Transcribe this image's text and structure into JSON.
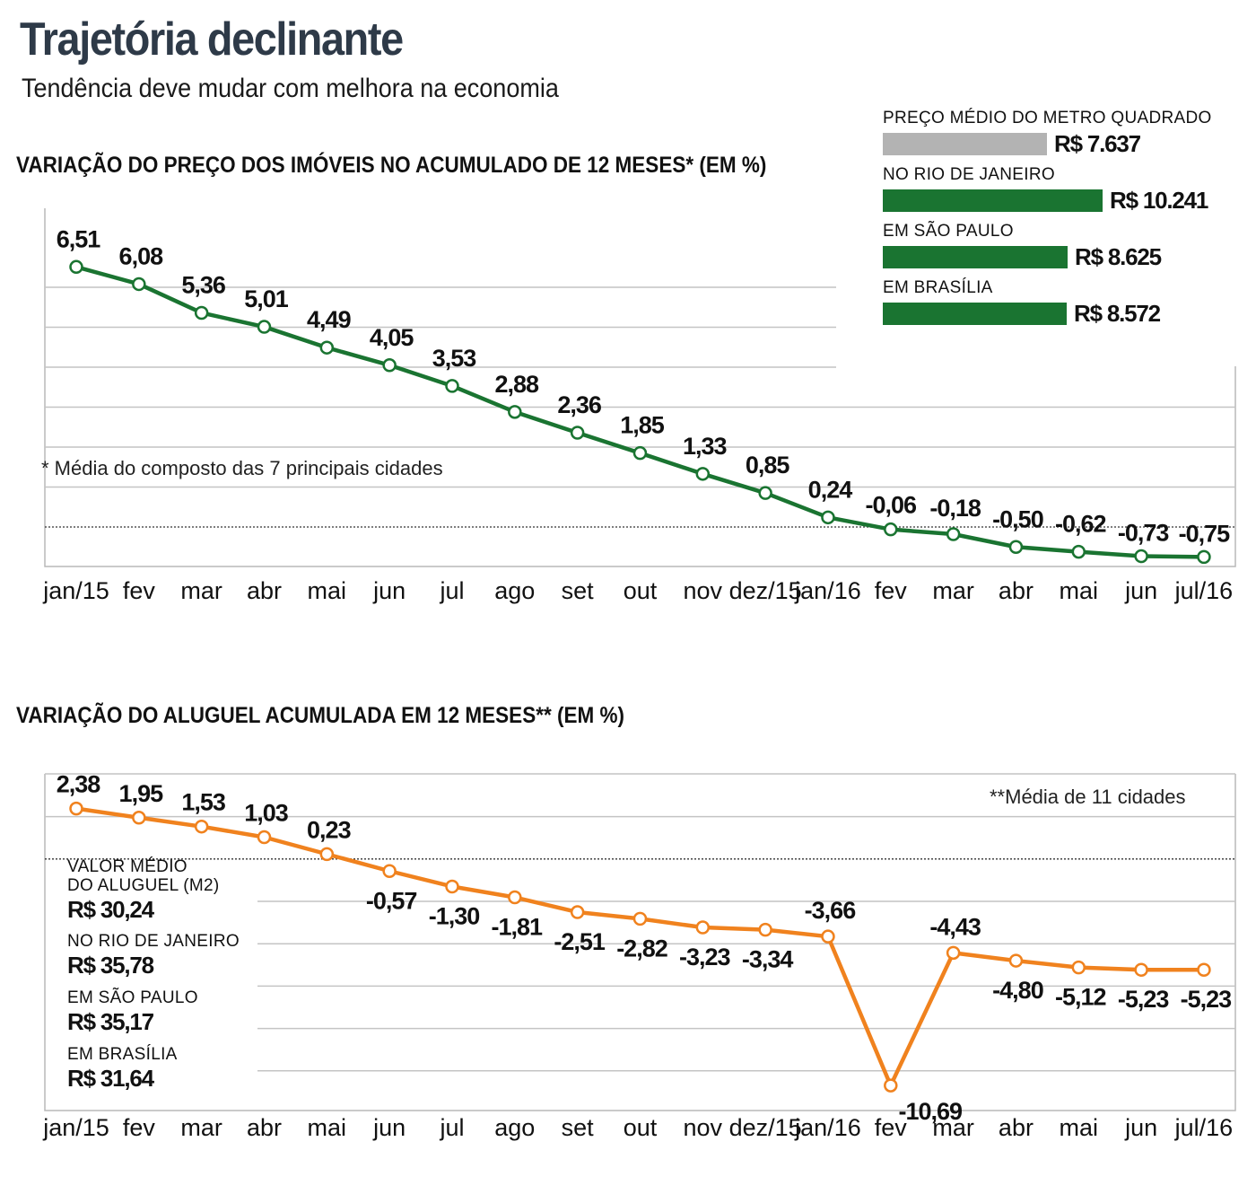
{
  "header": {
    "title": "Trajetória declinante",
    "subtitle": "Tendência deve mudar com melhora na economia"
  },
  "colors": {
    "price_line": "#1a7431",
    "rent_line": "#f0821e",
    "legend_gray": "#b3b3b3",
    "legend_green": "#1a7431",
    "grid": "#cccccc"
  },
  "price_legend": {
    "items": [
      {
        "caption": "PREÇO MÉDIO DO METRO QUADRADO",
        "value": "R$ 7.637",
        "amount": 7637,
        "color": "gray"
      },
      {
        "caption": "NO RIO DE JANEIRO",
        "value": "R$ 10.241",
        "amount": 10241,
        "color": "green"
      },
      {
        "caption": "EM SÃO PAULO",
        "value": "R$ 8.625",
        "amount": 8625,
        "color": "green"
      },
      {
        "caption": "EM BRASÍLIA",
        "value": "R$ 8.572",
        "amount": 8572,
        "color": "green"
      }
    ]
  },
  "rent_legend": {
    "items": [
      {
        "caption": "VALOR MÉDIO\nDO ALUGUEL (M2)",
        "value": "R$ 30,24"
      },
      {
        "caption": "NO RIO DE JANEIRO",
        "value": "R$ 35,78"
      },
      {
        "caption": "EM SÃO PAULO",
        "value": "R$ 35,17"
      },
      {
        "caption": "EM BRASÍLIA",
        "value": "R$ 31,64"
      }
    ]
  },
  "chart_data": [
    {
      "type": "line",
      "title": "VARIAÇÃO DO PREÇO DOS IMÓVEIS NO ACUMULADO DE 12 MESES* (EM %)",
      "note": "* Média do composto das 7 principais cidades",
      "categories": [
        "jan/15",
        "fev",
        "mar",
        "abr",
        "mai",
        "jun",
        "jul",
        "ago",
        "set",
        "out",
        "nov",
        "dez/15",
        "jan/16",
        "fev",
        "mar",
        "abr",
        "mai",
        "jun",
        "jul/16"
      ],
      "series": [
        {
          "values": [
            6.51,
            6.08,
            5.36,
            5.01,
            4.49,
            4.05,
            3.53,
            2.88,
            2.36,
            1.85,
            1.33,
            0.85,
            0.24,
            -0.06,
            -0.18,
            -0.5,
            -0.62,
            -0.73,
            -0.75
          ],
          "labels": [
            "6,51",
            "6,08",
            "5,36",
            "5,01",
            "4,49",
            "4,05",
            "3,53",
            "2,88",
            "2,36",
            "1,85",
            "1,33",
            "0,85",
            "0,24",
            "-0,06",
            "-0,18",
            "-0,50",
            "-0,62",
            "-0,73",
            "-0,75"
          ]
        }
      ],
      "ylim": [
        -1,
        7
      ],
      "zero_line": "dotted",
      "grid": true
    },
    {
      "type": "line",
      "title": "VARIAÇÃO DO ALUGUEL ACUMULADA EM 12 MESES**  (EM %)",
      "note": "**Média de 11 cidades",
      "categories": [
        "jan/15",
        "fev",
        "mar",
        "abr",
        "mai",
        "jun",
        "jul",
        "ago",
        "set",
        "out",
        "nov",
        "dez/15",
        "jan/16",
        "fev",
        "mar",
        "abr",
        "mai",
        "jun",
        "jul/16"
      ],
      "series": [
        {
          "values": [
            2.38,
            1.95,
            1.53,
            1.03,
            0.23,
            -0.57,
            -1.3,
            -1.81,
            -2.51,
            -2.82,
            -3.23,
            -3.34,
            -3.66,
            -10.69,
            -4.43,
            -4.8,
            -5.12,
            -5.23,
            -5.23
          ],
          "labels": [
            "2,38",
            "1,95",
            "1,53",
            "1,03",
            "0,23",
            "-0,57",
            "-1,30",
            "-1,81",
            "-2,51",
            "-2,82",
            "-3,23",
            "-3,34",
            "-3,66",
            "-10,69",
            "-4,43",
            "-4,80",
            "-5,12",
            "-5,23",
            "-5,23"
          ]
        }
      ],
      "ylim": [
        -12,
        4
      ],
      "zero_line": "dotted",
      "grid": true
    }
  ]
}
